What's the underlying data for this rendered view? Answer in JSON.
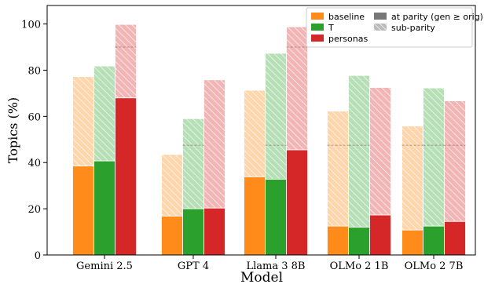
{
  "chart_data": {
    "type": "bar",
    "xlabel": "Model",
    "ylabel": "Topics (%)",
    "ylim": [
      0,
      108
    ],
    "yticks": [
      0,
      20,
      40,
      60,
      80,
      100
    ],
    "categories": [
      "Gemini 2.5",
      "GPT 4",
      "Llama 3 8B",
      "OLMo 2 1B",
      "OLMo 2 7B"
    ],
    "series": [
      {
        "name": "baseline",
        "color": "#ff8c1a",
        "parity": [
          38.5,
          16.8,
          33.8,
          12.5,
          10.8
        ],
        "total": [
          77.2,
          43.5,
          71.3,
          62.3,
          55.8
        ],
        "dashed_ref": [
          null,
          null,
          null,
          47.5,
          47.5
        ]
      },
      {
        "name": "T",
        "color": "#2ca02c",
        "parity": [
          40.7,
          20.0,
          32.8,
          12.0,
          12.5
        ],
        "total": [
          81.8,
          59.0,
          87.3,
          77.7,
          72.3
        ],
        "dashed_ref": [
          null,
          47.5,
          47.5,
          47.5,
          47.5
        ]
      },
      {
        "name": "personas",
        "color": "#d62728",
        "parity": [
          68.0,
          20.3,
          45.5,
          17.3,
          14.5
        ],
        "total": [
          99.8,
          75.8,
          98.8,
          72.5,
          66.7
        ],
        "dashed_ref": [
          90.0,
          null,
          90.0,
          null,
          47.5
        ]
      }
    ],
    "legend": {
      "placement": "top-right",
      "parity_label": "at parity (gen ≥ orig)",
      "subparity_label": "sub-parity"
    },
    "grid": false
  }
}
